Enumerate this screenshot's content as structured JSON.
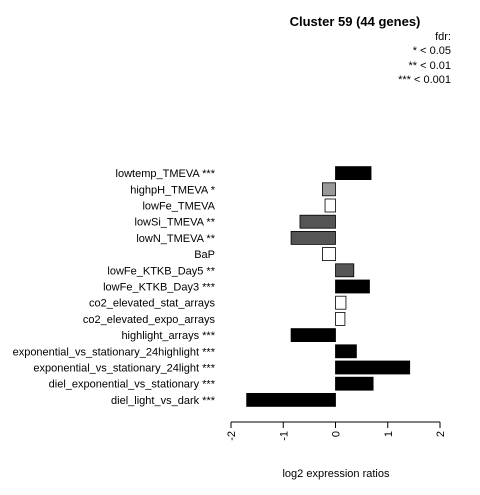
{
  "chart_data": {
    "type": "bar",
    "orientation": "horizontal",
    "title": "Cluster 59 (44 genes)",
    "xlabel": "log2 expression ratios",
    "xlim": [
      -2,
      2
    ],
    "xticks": [
      "-2",
      "-1",
      "0",
      "1",
      "2"
    ],
    "legend": {
      "position": "top-right",
      "title": "fdr:",
      "entries": [
        "* < 0.05",
        "** < 0.01",
        "*** < 0.001"
      ]
    },
    "categories": [
      "lowtemp_TMEVA ***",
      "highpH_TMEVA *",
      "lowFe_TMEVA",
      "lowSi_TMEVA **",
      "lowN_TMEVA **",
      "BaP",
      "lowFe_KTKB_Day5 **",
      "lowFe_KTKB_Day3 ***",
      "co2_elevated_stat_arrays",
      "co2_elevated_expo_arrays",
      "highlight_arrays ***",
      "exponential_vs_stationary_24highlight ***",
      "exponential_vs_stationary_24light ***",
      "diel_exponential_vs_stationary ***",
      "diel_light_vs_dark ***"
    ],
    "values": [
      0.68,
      -0.25,
      -0.2,
      -0.68,
      -0.85,
      -0.25,
      0.35,
      0.65,
      0.2,
      0.18,
      -0.85,
      0.4,
      1.42,
      0.72,
      -1.7
    ],
    "colors": [
      "#000000",
      "#999999",
      "#ffffff",
      "#555555",
      "#555555",
      "#ffffff",
      "#555555",
      "#000000",
      "#ffffff",
      "#ffffff",
      "#000000",
      "#000000",
      "#000000",
      "#000000",
      "#000000"
    ]
  }
}
